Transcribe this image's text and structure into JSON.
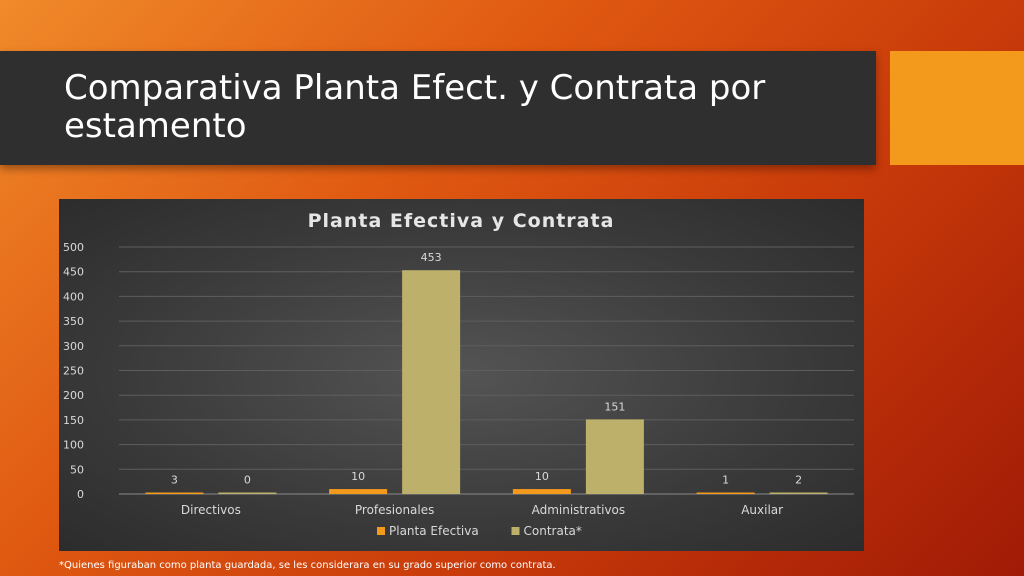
{
  "slide": {
    "title": "Comparativa Planta Efect. y Contrata por estamento",
    "footnote": "*Quienes figuraban como planta guardada, se les considerara en su grado superior como contrata."
  },
  "colors": {
    "series_planta": "#f39a1c",
    "series_contrata": "#bdb06a",
    "accent": "#f39a1c",
    "title_band": "#2f2f2f"
  },
  "chart_data": {
    "type": "bar",
    "title": "Planta Efectiva y Contrata",
    "xlabel": "",
    "ylabel": "",
    "categories": [
      "Directivos",
      "Profesionales",
      "Administrativos",
      "Auxilar"
    ],
    "series": [
      {
        "name": "Planta Efectiva",
        "values": [
          3,
          10,
          10,
          1
        ]
      },
      {
        "name": "Contrata*",
        "values": [
          0,
          453,
          151,
          2
        ]
      }
    ],
    "ylim": [
      0,
      500
    ],
    "yticks": [
      0,
      50,
      100,
      150,
      200,
      250,
      300,
      350,
      400,
      450,
      500
    ],
    "grid": true,
    "data_labels": true,
    "legend_position": "bottom"
  }
}
